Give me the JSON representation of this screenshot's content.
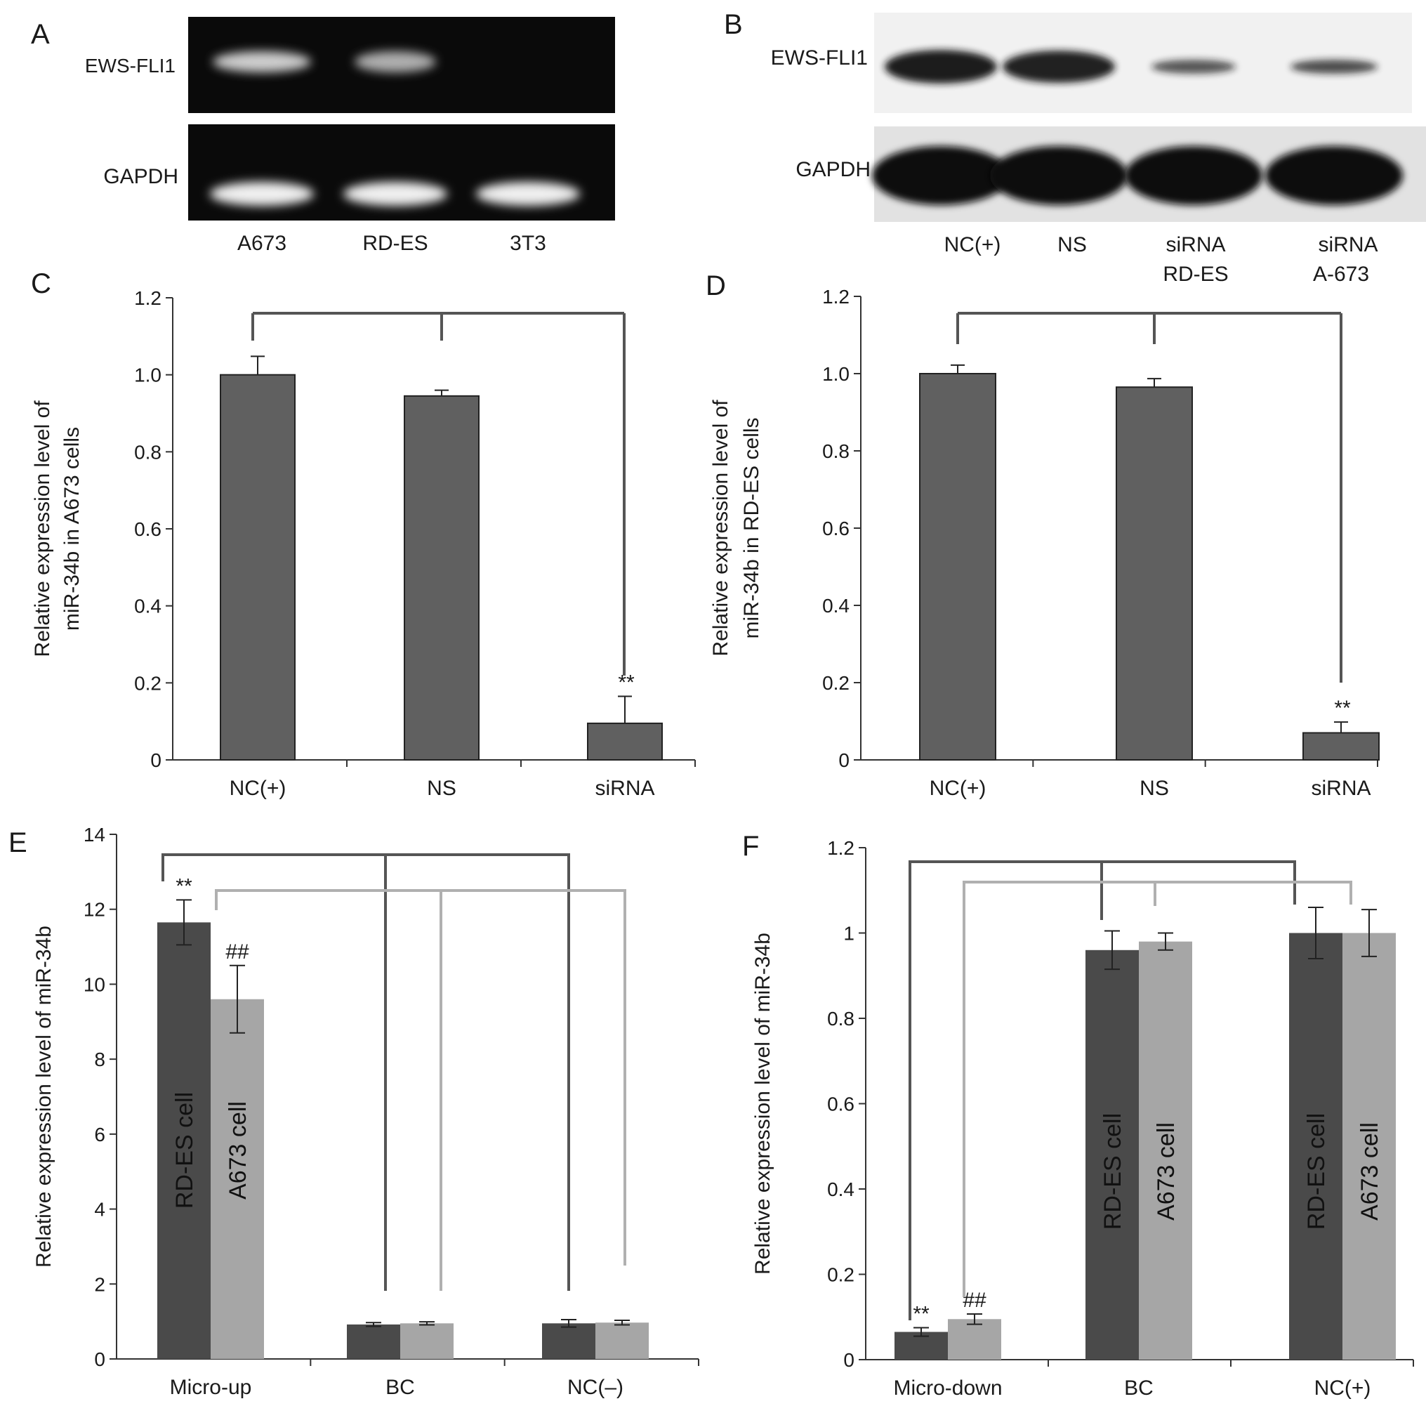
{
  "panels": {
    "A": {
      "label": "A",
      "band_labels": [
        "EWS-FLI1",
        "GAPDH"
      ],
      "lanes": [
        "A673",
        "RD-ES",
        "3T3"
      ],
      "ews_fli1_band_present": [
        true,
        true,
        false
      ]
    },
    "B": {
      "label": "B",
      "band_labels": [
        "EWS-FLI1",
        "GAPDH"
      ],
      "lanes": [
        [
          "NC(+)"
        ],
        [
          "NS"
        ],
        [
          "siRNA",
          "RD-ES"
        ],
        [
          "siRNA",
          "A-673"
        ]
      ]
    }
  },
  "chart_data": [
    {
      "panel": "C",
      "type": "bar",
      "ylabel": [
        "Relative expression level of",
        "miR-34b in A673 cells"
      ],
      "categories": [
        "NC(+)",
        "NS",
        "siRNA"
      ],
      "values": [
        1.0,
        0.945,
        0.095
      ],
      "errors": [
        0.048,
        0.015,
        0.07
      ],
      "ylim": [
        0,
        1.2
      ],
      "yticks": [
        "0",
        "0.2",
        "0.4",
        "0.6",
        "0.8",
        "1.0",
        "1.2"
      ],
      "annotations": [
        {
          "category": 2,
          "text": "**"
        }
      ],
      "bar_color": "#606060"
    },
    {
      "panel": "D",
      "type": "bar",
      "ylabel": [
        "Relative expression level of",
        "miR-34b in RD-ES cells"
      ],
      "categories": [
        "NC(+)",
        "NS",
        "siRNA"
      ],
      "values": [
        1.0,
        0.965,
        0.07
      ],
      "errors": [
        0.022,
        0.022,
        0.028
      ],
      "ylim": [
        0,
        1.2
      ],
      "yticks": [
        "0",
        "0.2",
        "0.4",
        "0.6",
        "0.8",
        "1.0",
        "1.2"
      ],
      "annotations": [
        {
          "category": 2,
          "text": "**"
        }
      ],
      "bar_color": "#606060"
    },
    {
      "panel": "E",
      "type": "bar",
      "ylabel": [
        "Relative expression level of miR-34b"
      ],
      "categories": [
        "Micro-up",
        "BC",
        "NC(–)"
      ],
      "series": [
        {
          "name": "RD-ES cell",
          "values": [
            11.65,
            0.92,
            0.95
          ],
          "errors": [
            0.6,
            0.05,
            0.1
          ],
          "color": "#4a4a4a"
        },
        {
          "name": "A673 cell",
          "values": [
            9.6,
            0.95,
            0.97
          ],
          "errors": [
            0.9,
            0.04,
            0.06
          ],
          "color": "#a6a6a6"
        }
      ],
      "ylim": [
        0,
        14
      ],
      "yticks": [
        "0",
        "2",
        "4",
        "6",
        "8",
        "10",
        "12",
        "14"
      ],
      "annotations": [
        {
          "category": 0,
          "series": 0,
          "text": "**"
        },
        {
          "category": 0,
          "series": 1,
          "text": "##"
        }
      ]
    },
    {
      "panel": "F",
      "type": "bar",
      "ylabel": [
        "Relative expression level of miR-34b"
      ],
      "categories": [
        "Micro-down",
        "BC",
        "NC(+)"
      ],
      "series": [
        {
          "name": "RD-ES cell",
          "values": [
            0.065,
            0.96,
            1.0
          ],
          "errors": [
            0.01,
            0.045,
            0.06
          ],
          "color": "#4a4a4a"
        },
        {
          "name": "A673 cell",
          "values": [
            0.095,
            0.98,
            1.0
          ],
          "errors": [
            0.012,
            0.02,
            0.055
          ],
          "color": "#a6a6a6"
        }
      ],
      "ylim": [
        0,
        1.2
      ],
      "yticks": [
        "0",
        "0.2",
        "0.4",
        "0.6",
        "0.8",
        "1",
        "1.2"
      ],
      "annotations": [
        {
          "category": 0,
          "series": 0,
          "text": "**"
        },
        {
          "category": 0,
          "series": 1,
          "text": "##"
        }
      ]
    }
  ]
}
